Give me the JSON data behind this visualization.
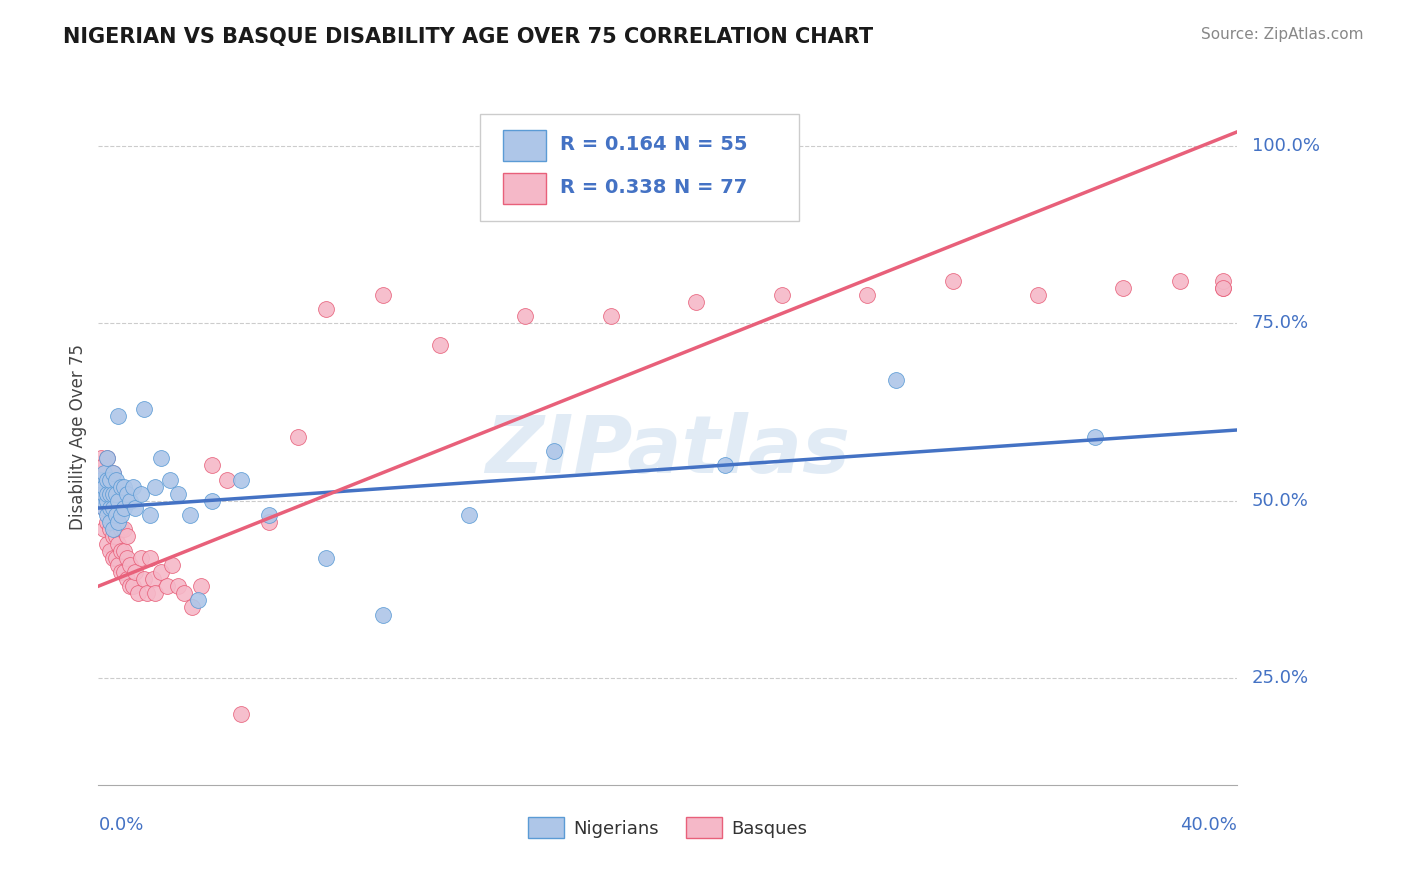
{
  "title": "NIGERIAN VS BASQUE DISABILITY AGE OVER 75 CORRELATION CHART",
  "source": "Source: ZipAtlas.com",
  "ylabel": "Disability Age Over 75",
  "yticks_labels": [
    "25.0%",
    "50.0%",
    "75.0%",
    "100.0%"
  ],
  "ytick_vals": [
    0.25,
    0.5,
    0.75,
    1.0
  ],
  "xmin": 0.0,
  "xmax": 0.4,
  "ymin": 0.1,
  "ymax": 1.08,
  "nigerian_R": 0.164,
  "nigerian_N": 55,
  "basque_R": 0.338,
  "basque_N": 77,
  "nigerian_color": "#aec6e8",
  "basque_color": "#f5b8c8",
  "nigerian_edge_color": "#5b9bd5",
  "basque_edge_color": "#e8607a",
  "nigerian_line_color": "#4472c4",
  "basque_line_color": "#e8607a",
  "watermark": "ZIPatlas",
  "bg_color": "#ffffff",
  "grid_color": "#cccccc",
  "label_blue": "#4472c4",
  "nigerian_scatter_x": [
    0.001,
    0.001,
    0.001,
    0.001,
    0.002,
    0.002,
    0.002,
    0.002,
    0.002,
    0.003,
    0.003,
    0.003,
    0.003,
    0.003,
    0.004,
    0.004,
    0.004,
    0.004,
    0.005,
    0.005,
    0.005,
    0.005,
    0.006,
    0.006,
    0.006,
    0.007,
    0.007,
    0.007,
    0.008,
    0.008,
    0.009,
    0.009,
    0.01,
    0.011,
    0.012,
    0.013,
    0.015,
    0.016,
    0.018,
    0.02,
    0.022,
    0.025,
    0.028,
    0.032,
    0.035,
    0.04,
    0.05,
    0.06,
    0.08,
    0.1,
    0.13,
    0.16,
    0.22,
    0.28,
    0.35
  ],
  "nigerian_scatter_y": [
    0.5,
    0.51,
    0.52,
    0.53,
    0.49,
    0.5,
    0.51,
    0.52,
    0.54,
    0.48,
    0.5,
    0.51,
    0.53,
    0.56,
    0.47,
    0.49,
    0.51,
    0.53,
    0.46,
    0.49,
    0.51,
    0.54,
    0.48,
    0.51,
    0.53,
    0.47,
    0.5,
    0.62,
    0.48,
    0.52,
    0.49,
    0.52,
    0.51,
    0.5,
    0.52,
    0.49,
    0.51,
    0.63,
    0.48,
    0.52,
    0.56,
    0.53,
    0.51,
    0.48,
    0.36,
    0.5,
    0.53,
    0.48,
    0.42,
    0.34,
    0.48,
    0.57,
    0.55,
    0.67,
    0.59
  ],
  "basque_scatter_x": [
    0.001,
    0.001,
    0.001,
    0.002,
    0.002,
    0.002,
    0.002,
    0.003,
    0.003,
    0.003,
    0.003,
    0.003,
    0.004,
    0.004,
    0.004,
    0.004,
    0.005,
    0.005,
    0.005,
    0.005,
    0.005,
    0.006,
    0.006,
    0.006,
    0.006,
    0.007,
    0.007,
    0.007,
    0.007,
    0.008,
    0.008,
    0.008,
    0.008,
    0.009,
    0.009,
    0.009,
    0.01,
    0.01,
    0.01,
    0.011,
    0.011,
    0.012,
    0.013,
    0.014,
    0.015,
    0.016,
    0.017,
    0.018,
    0.019,
    0.02,
    0.022,
    0.024,
    0.026,
    0.028,
    0.03,
    0.033,
    0.036,
    0.04,
    0.045,
    0.05,
    0.06,
    0.07,
    0.08,
    0.1,
    0.12,
    0.15,
    0.18,
    0.21,
    0.24,
    0.27,
    0.3,
    0.33,
    0.36,
    0.38,
    0.395,
    0.395,
    0.395
  ],
  "basque_scatter_y": [
    0.51,
    0.54,
    0.56,
    0.46,
    0.49,
    0.52,
    0.55,
    0.44,
    0.47,
    0.5,
    0.53,
    0.56,
    0.43,
    0.46,
    0.49,
    0.52,
    0.42,
    0.45,
    0.48,
    0.51,
    0.54,
    0.42,
    0.45,
    0.48,
    0.51,
    0.41,
    0.44,
    0.47,
    0.5,
    0.4,
    0.43,
    0.46,
    0.49,
    0.4,
    0.43,
    0.46,
    0.39,
    0.42,
    0.45,
    0.38,
    0.41,
    0.38,
    0.4,
    0.37,
    0.42,
    0.39,
    0.37,
    0.42,
    0.39,
    0.37,
    0.4,
    0.38,
    0.41,
    0.38,
    0.37,
    0.35,
    0.38,
    0.55,
    0.53,
    0.2,
    0.47,
    0.59,
    0.77,
    0.79,
    0.72,
    0.76,
    0.76,
    0.78,
    0.79,
    0.79,
    0.81,
    0.79,
    0.8,
    0.81,
    0.8,
    0.81,
    0.8
  ],
  "nig_line_x0": 0.0,
  "nig_line_y0": 0.49,
  "nig_line_x1": 0.4,
  "nig_line_y1": 0.6,
  "bas_line_x0": 0.0,
  "bas_line_y0": 0.38,
  "bas_line_x1": 0.4,
  "bas_line_y1": 1.02
}
